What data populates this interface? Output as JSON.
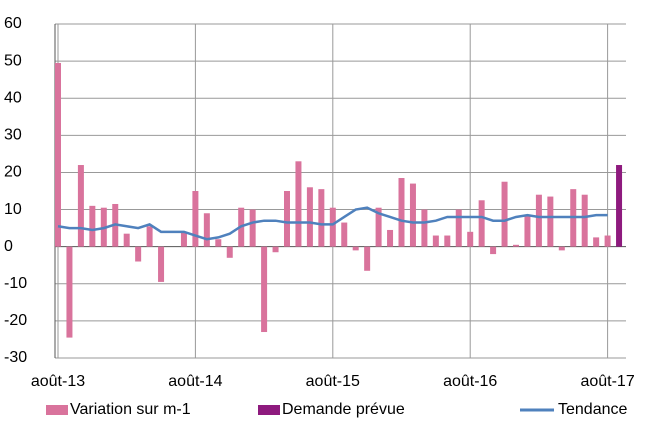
{
  "chart_data": {
    "type": "bar",
    "categories": [
      "août-13",
      null,
      null,
      null,
      null,
      null,
      null,
      null,
      null,
      null,
      null,
      null,
      "août-14",
      null,
      null,
      null,
      null,
      null,
      null,
      null,
      null,
      null,
      null,
      null,
      "août-15",
      null,
      null,
      null,
      null,
      null,
      null,
      null,
      null,
      null,
      null,
      null,
      "août-16",
      null,
      null,
      null,
      null,
      null,
      null,
      null,
      null,
      null,
      null,
      null,
      "août-17",
      null
    ],
    "series": [
      {
        "name": "Variation sur m-1",
        "type": "bar",
        "color": "#d9739c",
        "values": [
          49.5,
          -24.5,
          22,
          11,
          10.5,
          11.5,
          3.5,
          -4,
          5.5,
          -9.5,
          null,
          4,
          15,
          9,
          2,
          -3,
          10.5,
          10,
          -23,
          -1.5,
          15,
          23,
          16,
          15.5,
          10.5,
          6.5,
          -1,
          -6.5,
          10.5,
          4.5,
          18.5,
          17,
          10,
          3,
          3,
          10,
          4,
          12.5,
          -2,
          17.5,
          0.5,
          8.5,
          14,
          13.5,
          -1,
          15.5,
          14,
          2.5,
          3,
          null
        ]
      },
      {
        "name": "Demande prévue",
        "type": "bar",
        "color": "#8e1a7e",
        "values": [
          null,
          null,
          null,
          null,
          null,
          null,
          null,
          null,
          null,
          null,
          null,
          null,
          null,
          null,
          null,
          null,
          null,
          null,
          null,
          null,
          null,
          null,
          null,
          null,
          null,
          null,
          null,
          null,
          null,
          null,
          null,
          null,
          null,
          null,
          null,
          null,
          null,
          null,
          null,
          null,
          null,
          null,
          null,
          null,
          null,
          null,
          null,
          null,
          null,
          22
        ]
      },
      {
        "name": "Tendance",
        "type": "line",
        "color": "#4f81bd",
        "values": [
          5.5,
          5,
          5,
          4.5,
          5,
          6,
          5.5,
          5,
          6,
          4,
          4,
          4,
          3,
          2,
          2.5,
          3.5,
          5.5,
          6.5,
          7,
          7,
          6.5,
          6.5,
          6.5,
          6,
          6,
          8,
          10,
          10.5,
          9,
          8,
          7,
          6.5,
          6.5,
          7,
          8,
          8,
          8,
          8,
          7,
          7,
          8,
          8.5,
          8,
          8,
          8,
          8,
          8,
          8.5,
          8.5,
          null
        ]
      }
    ],
    "ylim": [
      -30,
      60
    ],
    "yticks": [
      -30,
      -20,
      -10,
      0,
      10,
      20,
      30,
      40,
      50,
      60
    ],
    "grid": true
  }
}
